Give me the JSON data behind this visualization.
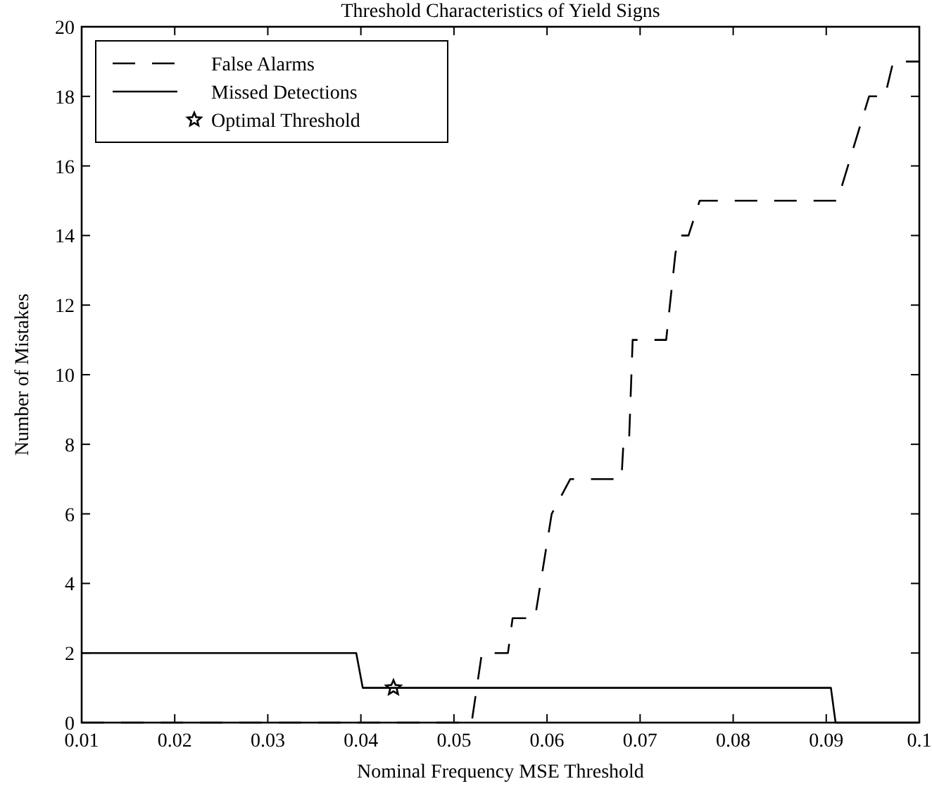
{
  "chart_data": {
    "type": "line",
    "title": "Threshold Characteristics of Yield Signs",
    "xlabel": "Nominal Frequency MSE Threshold",
    "ylabel": "Number of Mistakes",
    "xlim": [
      0.01,
      0.1
    ],
    "xticks": [
      0.01,
      0.02,
      0.03,
      0.04,
      0.05,
      0.06,
      0.07,
      0.08,
      0.09,
      0.1
    ],
    "ylim": [
      0,
      20
    ],
    "yticks": [
      0,
      2,
      4,
      6,
      8,
      10,
      12,
      14,
      16,
      18,
      20
    ],
    "legend": "top left",
    "grid": false,
    "series": [
      {
        "name": "False Alarms",
        "color": "#000000",
        "line_style": "dashed",
        "marker": "none",
        "x": [
          0.01,
          0.0519,
          0.053,
          0.0558,
          0.0563,
          0.0587,
          0.0605,
          0.0625,
          0.068,
          0.0682,
          0.0688,
          0.0692,
          0.0723,
          0.0728,
          0.0738,
          0.0743,
          0.0752,
          0.0764,
          0.0912,
          0.0946,
          0.0963,
          0.0972,
          0.1
        ],
        "values": [
          0,
          0,
          2,
          2,
          3,
          3,
          6,
          7,
          7,
          8,
          8,
          11,
          11,
          11,
          13.5,
          14,
          14,
          15,
          15,
          18,
          18,
          19,
          19
        ]
      },
      {
        "name": "Missed Detections",
        "color": "#000000",
        "line_style": "solid",
        "marker": "none",
        "x": [
          0.01,
          0.0395,
          0.0402,
          0.0905,
          0.091,
          0.1
        ],
        "values": [
          2,
          2,
          1,
          1,
          0,
          0
        ]
      },
      {
        "name": "Optimal Threshold",
        "type": "scatter",
        "color": "#000000",
        "marker": "star",
        "x": [
          0.0435
        ],
        "values": [
          1
        ]
      }
    ]
  }
}
